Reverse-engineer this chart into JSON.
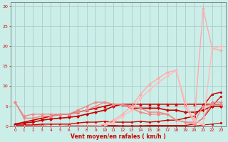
{
  "background_color": "#cceee8",
  "grid_color": "#aacccc",
  "xlabel": "Vent moyen/en rafales ( km/h )",
  "xlabel_color": "#cc0000",
  "xlim": [
    -0.5,
    23.5
  ],
  "ylim": [
    0,
    31
  ],
  "yticks": [
    0,
    5,
    10,
    15,
    20,
    25,
    30
  ],
  "xticks": [
    0,
    1,
    2,
    3,
    4,
    5,
    6,
    7,
    8,
    9,
    10,
    11,
    12,
    13,
    14,
    15,
    16,
    17,
    18,
    19,
    20,
    21,
    22,
    23
  ],
  "tick_color": "#cc0000",
  "lines": [
    {
      "x": [
        0,
        1,
        2,
        3,
        4,
        5,
        6,
        7,
        8,
        9,
        10,
        11,
        12,
        13,
        14,
        15,
        16,
        17,
        18,
        19,
        20,
        21,
        22,
        23
      ],
      "y": [
        0.3,
        0.1,
        0.0,
        0.0,
        0.0,
        0.0,
        0.0,
        0.0,
        0.0,
        0.0,
        0.0,
        0.0,
        0.0,
        0.0,
        0.0,
        0.0,
        0.0,
        0.0,
        0.0,
        0.0,
        0.0,
        0.3,
        0.5,
        0.8
      ],
      "color": "#cc0000",
      "lw": 0.8,
      "marker": "s",
      "markersize": 1.5
    },
    {
      "x": [
        0,
        1,
        2,
        3,
        4,
        5,
        6,
        7,
        8,
        9,
        10,
        11,
        12,
        13,
        14,
        15,
        16,
        17,
        18,
        19,
        20,
        21,
        22,
        23
      ],
      "y": [
        0.3,
        0.1,
        0.1,
        0.1,
        0.0,
        0.0,
        0.1,
        0.1,
        0.1,
        0.1,
        0.2,
        0.2,
        0.1,
        0.1,
        0.1,
        0.2,
        0.2,
        0.2,
        0.2,
        0.2,
        0.5,
        2.0,
        5.0,
        7.5
      ],
      "color": "#cc0000",
      "lw": 0.8,
      "marker": "s",
      "markersize": 1.5
    },
    {
      "x": [
        0,
        1,
        2,
        3,
        4,
        5,
        6,
        7,
        8,
        9,
        10,
        11,
        12,
        13,
        14,
        15,
        16,
        17,
        18,
        19,
        20,
        21,
        22,
        23
      ],
      "y": [
        0.3,
        0.3,
        0.3,
        0.5,
        0.5,
        0.5,
        0.5,
        0.8,
        1.0,
        1.0,
        1.2,
        1.0,
        1.0,
        1.0,
        1.2,
        1.0,
        1.2,
        1.5,
        1.5,
        2.0,
        2.5,
        5.0,
        8.0,
        8.5
      ],
      "color": "#cc0000",
      "lw": 1.0,
      "marker": "s",
      "markersize": 1.5
    },
    {
      "x": [
        0,
        1,
        2,
        3,
        4,
        5,
        6,
        7,
        8,
        9,
        10,
        11,
        12,
        13,
        14,
        15,
        16,
        17,
        18,
        19,
        20,
        21,
        22,
        23
      ],
      "y": [
        0.5,
        0.8,
        1.0,
        1.5,
        1.8,
        2.0,
        2.2,
        2.5,
        3.0,
        3.5,
        4.0,
        5.0,
        5.5,
        4.5,
        4.5,
        4.5,
        4.5,
        4.0,
        4.0,
        3.5,
        3.5,
        4.0,
        5.0,
        5.0
      ],
      "color": "#cc0000",
      "lw": 1.2,
      "marker": "D",
      "markersize": 2
    },
    {
      "x": [
        0,
        1,
        2,
        3,
        4,
        5,
        6,
        7,
        8,
        9,
        10,
        11,
        12,
        13,
        14,
        15,
        16,
        17,
        18,
        19,
        20,
        21,
        22,
        23
      ],
      "y": [
        0.5,
        1.0,
        1.5,
        2.0,
        2.5,
        3.0,
        3.0,
        3.5,
        4.0,
        4.5,
        5.0,
        5.5,
        5.5,
        5.5,
        5.5,
        5.5,
        5.5,
        5.5,
        5.5,
        5.5,
        5.5,
        5.5,
        5.5,
        5.5
      ],
      "color": "#cc0000",
      "lw": 1.2,
      "marker": "^",
      "markersize": 2.5
    },
    {
      "x": [
        0,
        1,
        2,
        3,
        4,
        5,
        6,
        7,
        8,
        9,
        10,
        11,
        12,
        13,
        14,
        15,
        16,
        17,
        18,
        19,
        20,
        21,
        22,
        23
      ],
      "y": [
        6.0,
        2.5,
        3.0,
        3.0,
        3.0,
        3.0,
        3.0,
        3.5,
        4.0,
        5.0,
        6.0,
        5.5,
        5.5,
        4.5,
        3.5,
        3.0,
        3.0,
        3.0,
        1.5,
        1.0,
        1.0,
        5.0,
        5.5,
        5.5
      ],
      "color": "#ee8888",
      "lw": 1.0,
      "marker": "D",
      "markersize": 2
    },
    {
      "x": [
        0,
        1,
        2,
        3,
        4,
        5,
        6,
        7,
        8,
        9,
        10,
        11,
        12,
        13,
        14,
        15,
        16,
        17,
        18,
        19,
        20,
        21,
        22,
        23
      ],
      "y": [
        6.0,
        2.0,
        2.0,
        2.5,
        2.5,
        3.0,
        3.0,
        4.0,
        5.0,
        6.0,
        6.0,
        5.5,
        5.5,
        5.0,
        4.5,
        3.5,
        3.5,
        3.0,
        1.5,
        1.0,
        0.5,
        2.0,
        6.0,
        6.0
      ],
      "color": "#ee8888",
      "lw": 1.0,
      "marker": "D",
      "markersize": 2
    },
    {
      "x": [
        0,
        1,
        2,
        3,
        4,
        5,
        6,
        7,
        8,
        9,
        10,
        11,
        12,
        13,
        14,
        15,
        16,
        17,
        18,
        19,
        20,
        21,
        22,
        23
      ],
      "y": [
        0,
        0,
        0,
        0,
        0,
        0,
        0,
        0,
        0,
        0,
        0.5,
        1.5,
        3.0,
        5.0,
        8.0,
        10.5,
        12.0,
        13.5,
        14.0,
        5.0,
        1.0,
        29.5,
        19.5,
        19.0
      ],
      "color": "#ffaaaa",
      "lw": 1.0,
      "marker": "D",
      "markersize": 2
    },
    {
      "x": [
        0,
        1,
        2,
        3,
        4,
        5,
        6,
        7,
        8,
        9,
        10,
        11,
        12,
        13,
        14,
        15,
        16,
        17,
        18,
        19,
        20,
        21,
        22,
        23
      ],
      "y": [
        0,
        0,
        0,
        0,
        0,
        0,
        0,
        0,
        0,
        0,
        0,
        1.0,
        2.5,
        4.0,
        7.0,
        9.0,
        11.0,
        12.5,
        14.0,
        6.0,
        1.5,
        0.5,
        19.5,
        20.0
      ],
      "color": "#ffbbbb",
      "lw": 1.0,
      "marker": "D",
      "markersize": 2
    }
  ]
}
